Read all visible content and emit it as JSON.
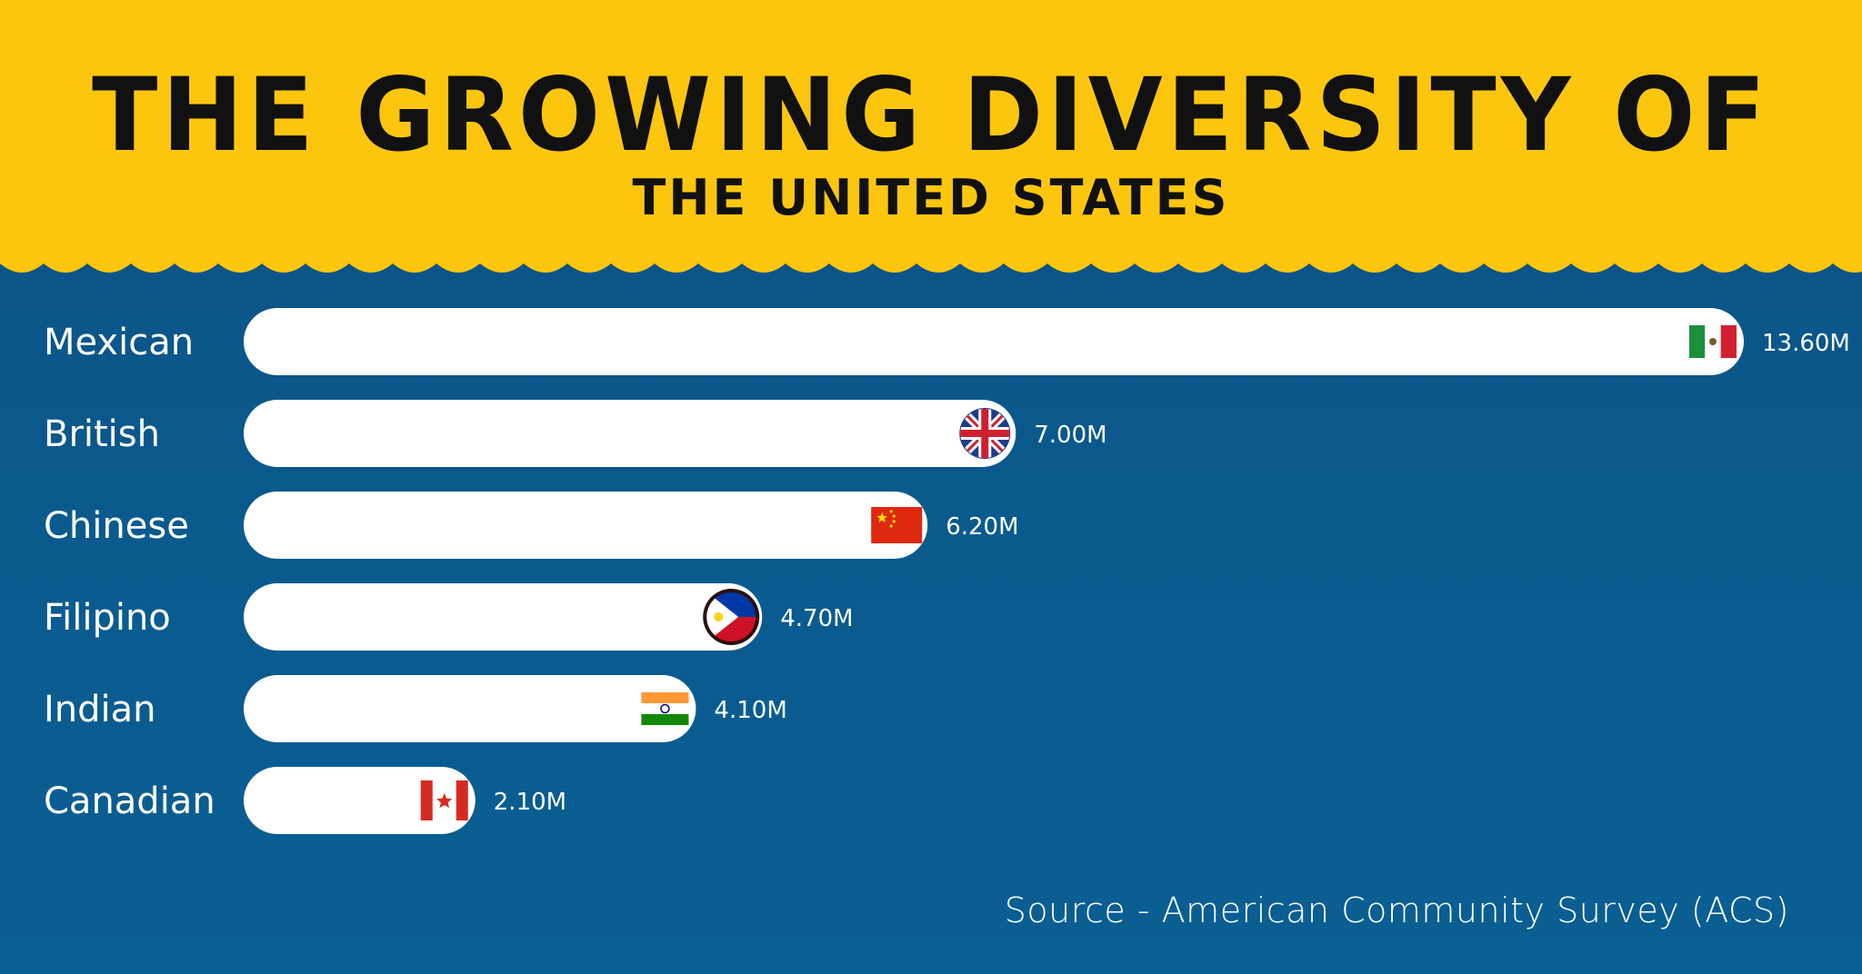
{
  "title": "THE GROWING DIVERSITY OF",
  "subtitle": "THE UNITED STATES",
  "source": "Source - American Community Survey (ACS)",
  "colors": {
    "header": "#fcc60f",
    "background": "#0a5a8e",
    "bar": "#ffffff",
    "text_on_dark": "#ffffff",
    "title_text": "#111111"
  },
  "chart_data": {
    "type": "bar",
    "orientation": "horizontal",
    "categories": [
      "Mexican",
      "British",
      "Chinese",
      "Filipino",
      "Indian",
      "Canadian"
    ],
    "values": [
      13.6,
      7.0,
      6.2,
      4.7,
      4.1,
      2.1
    ],
    "value_labels": [
      "13.60M",
      "7.00M",
      "6.20M",
      "4.70M",
      "4.10M",
      "2.10M"
    ],
    "flag_icons": [
      "mexico-flag-icon",
      "uk-flag-icon",
      "china-flag-icon",
      "philippines-flag-icon",
      "india-flag-icon",
      "canada-flag-icon"
    ],
    "title": "THE GROWING DIVERSITY OF THE UNITED STATES",
    "xlabel": "",
    "ylabel": "",
    "grid": false,
    "legend": "none"
  }
}
